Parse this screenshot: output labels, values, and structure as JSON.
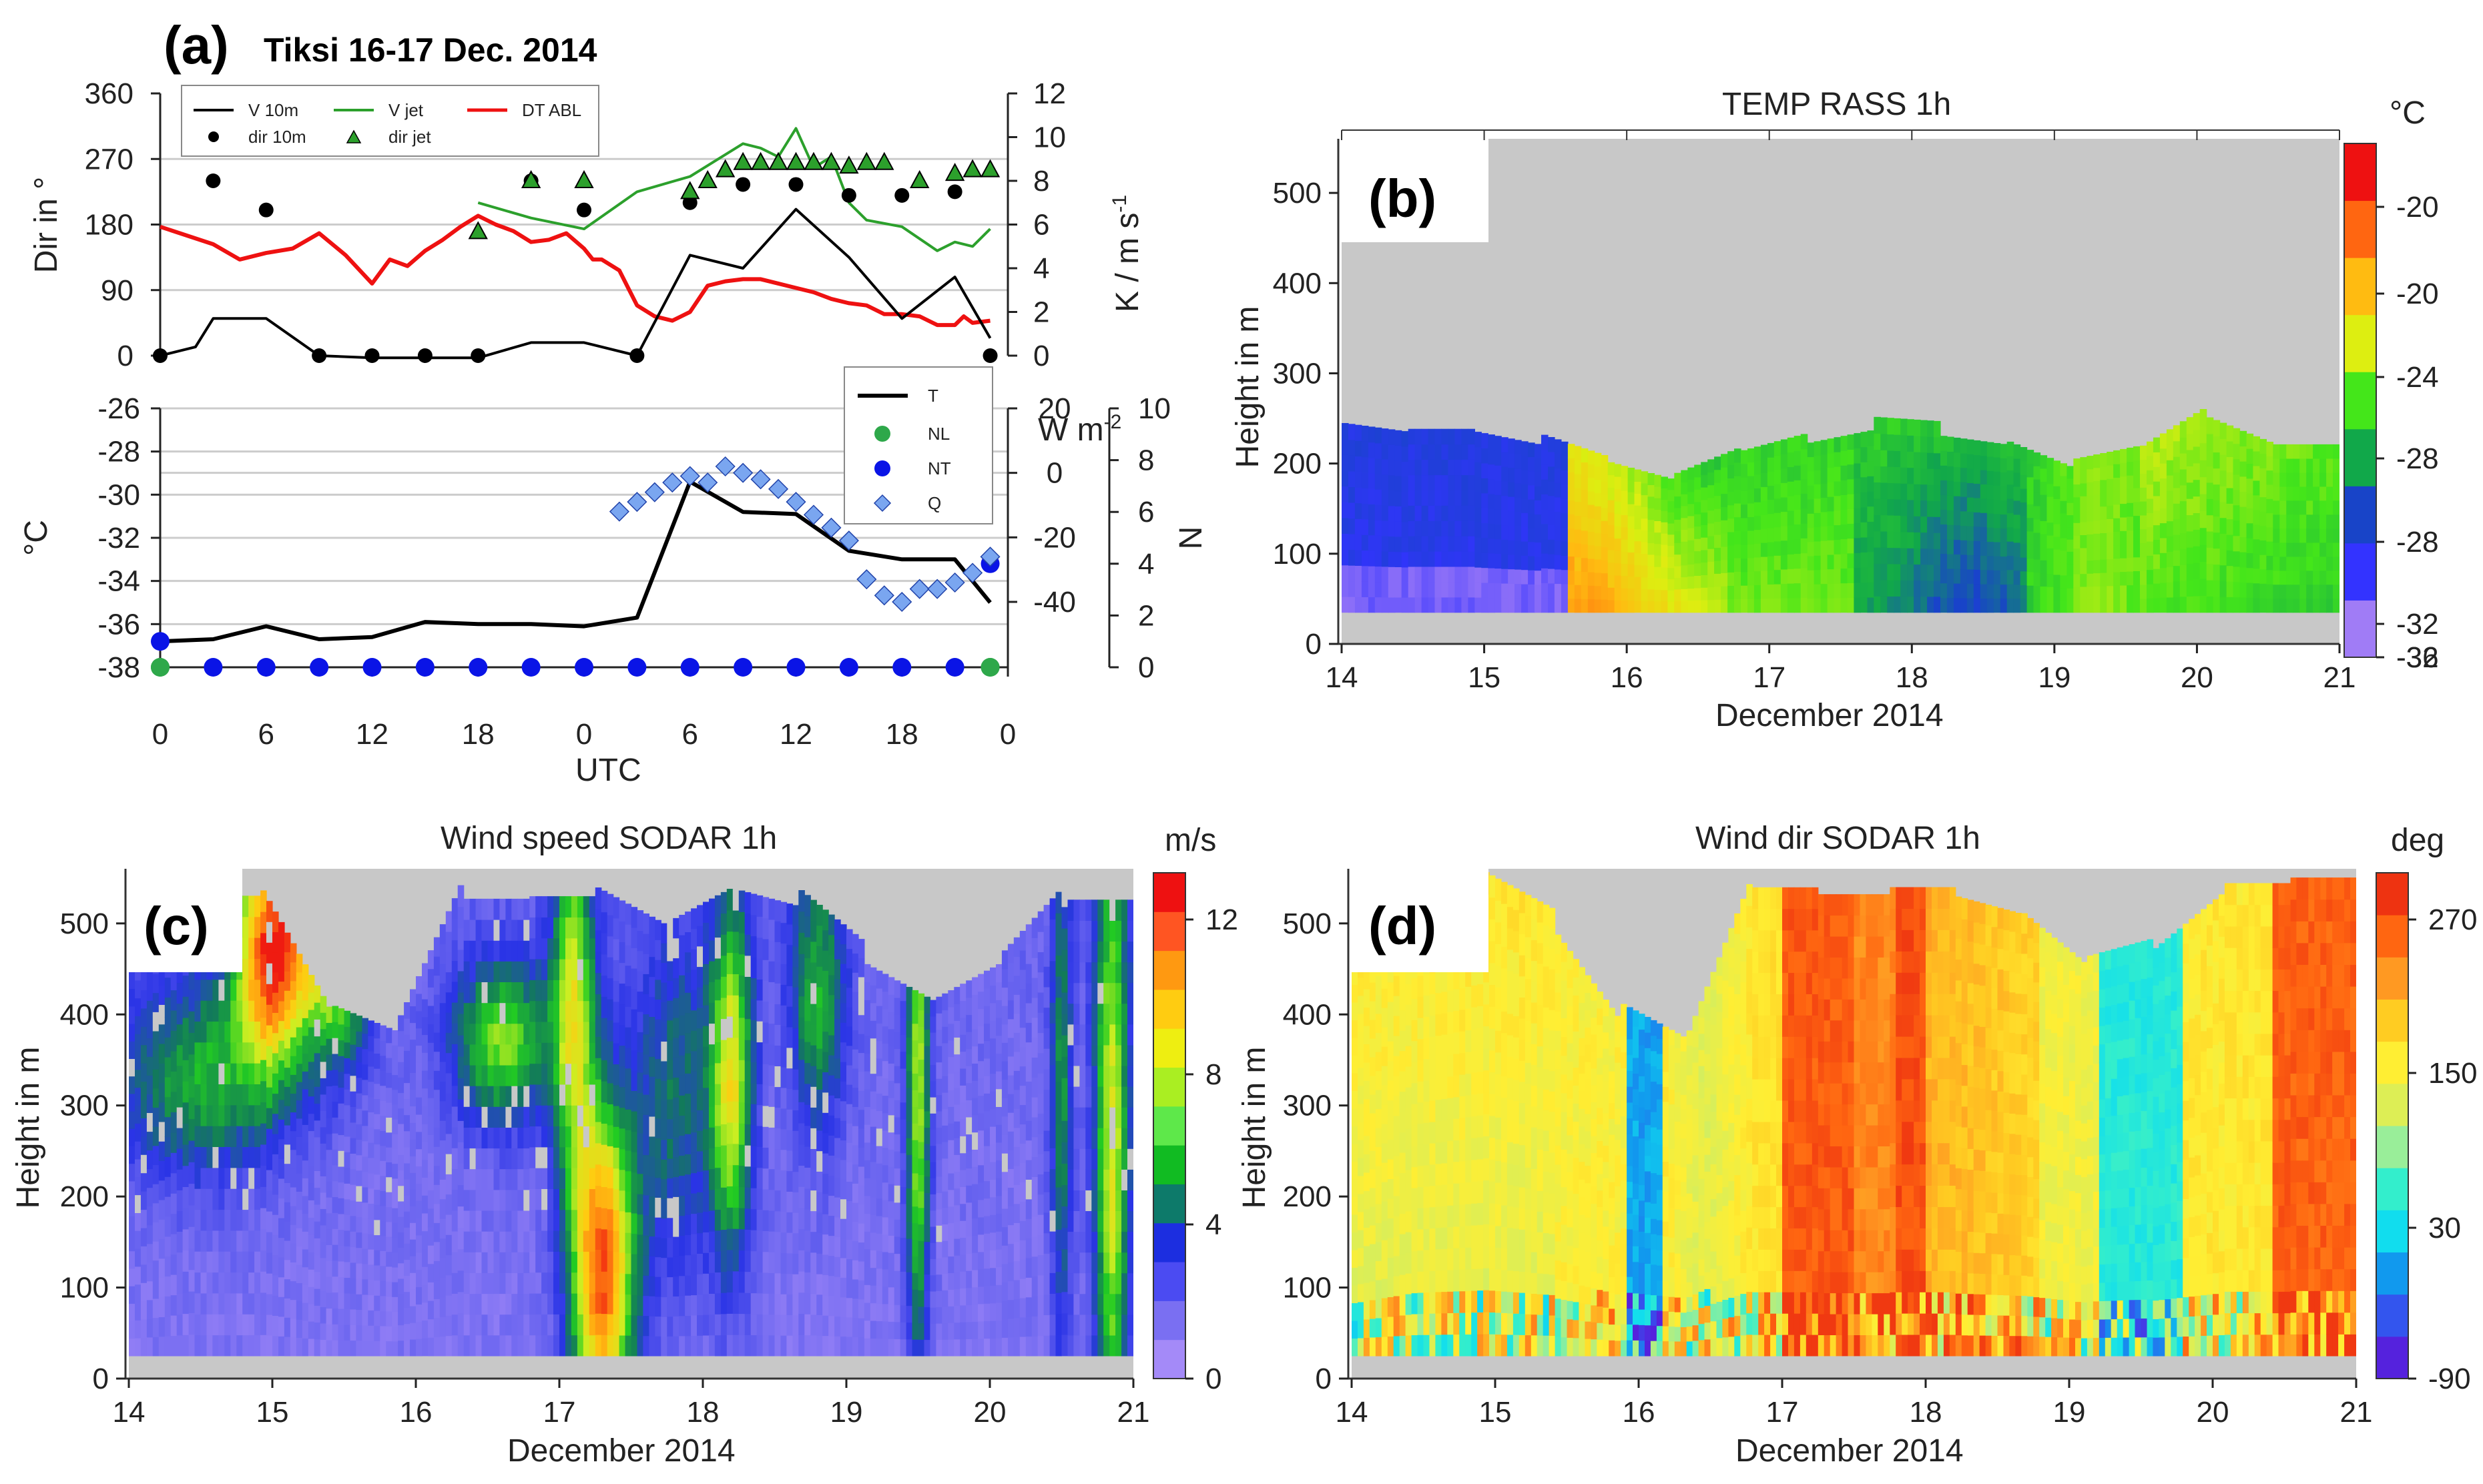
{
  "chart_data": [
    {
      "id": "a-top",
      "type": "line",
      "panel_label": "(a)",
      "title": "Tiksi 16-17 Dec. 2014",
      "ylabel_left": "Dir in °",
      "ylabel_right": "K / m s",
      "ylabel_right_sup": "-1",
      "ylim_left": [
        0,
        360
      ],
      "yticks_left": [
        "0",
        "90",
        "180",
        "270",
        "360"
      ],
      "ylim_right": [
        0,
        12
      ],
      "yticks_right": [
        "0",
        "2",
        "4",
        "6",
        "8",
        "10",
        "12"
      ],
      "xlim": [
        0,
        48
      ],
      "legend": [
        "V 10m",
        "V jet",
        "DT ABL",
        "dir 10m",
        "dir jet"
      ],
      "colors": {
        "v10m": "#000000",
        "vjet": "#2ca02c",
        "dtabl": "#ee1111",
        "dir10m": "#000000",
        "dirjet": "#2ca02c"
      },
      "series": [
        {
          "name": "V 10m",
          "axis": "right",
          "x": [
            0,
            2,
            3,
            6,
            9,
            12,
            15,
            18,
            21,
            24,
            27,
            30,
            33,
            36,
            39,
            42,
            45,
            47
          ],
          "y": [
            0,
            0.4,
            1.7,
            1.7,
            0,
            -0.1,
            -0.1,
            -0.1,
            0.6,
            0.6,
            0,
            4.6,
            4,
            6.7,
            4.5,
            1.7,
            3.6,
            0.8
          ]
        },
        {
          "name": "V jet",
          "axis": "right",
          "x": [
            18,
            21,
            24,
            27,
            30,
            32,
            33,
            34,
            35,
            36,
            37,
            38,
            39,
            40,
            42,
            44,
            45,
            46,
            47
          ],
          "y": [
            7,
            6.3,
            5.8,
            7.5,
            8.2,
            9.2,
            9.7,
            9.5,
            9.1,
            10.4,
            8.6,
            9.1,
            7,
            6.2,
            5.9,
            4.8,
            5.2,
            5.0,
            5.8
          ]
        },
        {
          "name": "DT ABL",
          "axis": "right",
          "x": [
            0,
            3,
            4.5,
            6,
            7.5,
            9,
            10.5,
            12,
            13,
            14,
            15,
            16,
            17,
            18,
            19,
            20,
            21,
            22,
            23,
            24,
            24.5,
            25,
            26,
            26.5,
            27,
            28,
            29,
            30,
            31,
            32,
            33,
            34,
            35,
            36,
            37,
            38,
            39,
            40,
            41,
            42,
            43,
            44,
            45,
            45.5,
            46,
            47
          ],
          "y": [
            5.9,
            5.1,
            4.4,
            4.7,
            4.9,
            5.6,
            4.6,
            3.3,
            4.4,
            4.1,
            4.8,
            5.3,
            5.9,
            6.4,
            6.0,
            5.7,
            5.2,
            5.3,
            5.6,
            4.9,
            4.4,
            4.4,
            3.9,
            3.1,
            2.3,
            1.8,
            1.6,
            2.0,
            3.2,
            3.4,
            3.5,
            3.5,
            3.3,
            3.1,
            2.9,
            2.6,
            2.4,
            2.3,
            1.9,
            1.9,
            1.8,
            1.4,
            1.4,
            1.8,
            1.5,
            1.6
          ]
        },
        {
          "name": "dir 10m",
          "axis": "left",
          "x": [
            0,
            3,
            6,
            9,
            12,
            15,
            18,
            21,
            24,
            27,
            30,
            33,
            36,
            39,
            42,
            45,
            47
          ],
          "y": [
            0,
            240,
            200,
            0,
            0,
            0,
            0,
            240,
            200,
            0,
            210,
            235,
            235,
            220,
            220,
            225,
            0
          ]
        },
        {
          "name": "dir jet",
          "axis": "left",
          "x": [
            18,
            21,
            24,
            30,
            31,
            32,
            33,
            34,
            35,
            36,
            37,
            38,
            39,
            40,
            41,
            43,
            45,
            46,
            47
          ],
          "y": [
            170,
            240,
            240,
            225,
            240,
            255,
            265,
            265,
            265,
            265,
            265,
            265,
            260,
            265,
            265,
            240,
            250,
            255,
            255
          ]
        }
      ]
    },
    {
      "id": "a-bottom",
      "type": "line",
      "ylabel_left": "°C",
      "ylabel_right": "W m",
      "ylabel_right_sup": "-2",
      "ylabel_n": "N",
      "xlabel": "UTC",
      "ylim_left": [
        -38,
        -26
      ],
      "yticks_left": [
        "-38",
        "-36",
        "-34",
        "-32",
        "-30",
        "-28",
        "-26"
      ],
      "yticks_wm2": [
        "-40",
        "-20",
        "0",
        "20"
      ],
      "yticks_n": [
        "0",
        "2",
        "4",
        "6",
        "8",
        "10"
      ],
      "xticks": [
        "0",
        "6",
        "12",
        "18",
        "0",
        "6",
        "12",
        "18",
        "0"
      ],
      "legend": [
        "T",
        "NL",
        "NT",
        "Q"
      ],
      "colors": {
        "T": "#000000",
        "NL": "#2ea84a",
        "NT": "#0a14e6",
        "Q": "#7aa6f0"
      },
      "series": [
        {
          "name": "T",
          "axis": "left",
          "x": [
            0,
            3,
            6,
            9,
            12,
            15,
            18,
            21,
            24,
            27,
            30,
            33,
            36,
            39,
            42,
            45,
            47
          ],
          "y": [
            -36.8,
            -36.7,
            -36.1,
            -36.7,
            -36.6,
            -35.9,
            -36.0,
            -36.0,
            -36.1,
            -35.7,
            -29.4,
            -30.8,
            -30.9,
            -32.6,
            -33.0,
            -33.0,
            -35.0
          ]
        },
        {
          "name": "NL",
          "axis": "n",
          "x": [
            0,
            47
          ],
          "y": [
            0,
            0
          ]
        },
        {
          "name": "NT",
          "axis": "n",
          "x": [
            0,
            3,
            6,
            9,
            12,
            15,
            18,
            21,
            24,
            27,
            30,
            33,
            36,
            39,
            42,
            45,
            47
          ],
          "y": [
            1,
            0,
            0,
            0,
            0,
            0,
            0,
            0,
            0,
            0,
            0,
            0,
            0,
            0,
            0,
            0,
            4
          ]
        },
        {
          "name": "Q",
          "axis": "wm2",
          "x": [
            26,
            27,
            28,
            29,
            30,
            31,
            32,
            33,
            34,
            35,
            36,
            37,
            38,
            39,
            40,
            41,
            42,
            43,
            44,
            45,
            46,
            47
          ],
          "y": [
            -12,
            -9,
            -6,
            -3,
            -1,
            -3,
            2,
            0,
            -2,
            -5,
            -9,
            -13,
            -17,
            -21,
            -33,
            -38,
            -40,
            -36,
            -36,
            -34,
            -31,
            -26
          ]
        }
      ]
    },
    {
      "id": "b",
      "type": "heatmap",
      "panel_label": "(b)",
      "title": "TEMP RASS 1h",
      "ylabel": "Height in m",
      "xlabel": "December 2014",
      "xticks": [
        "14",
        "15",
        "16",
        "17",
        "18",
        "19",
        "20",
        "21"
      ],
      "yticks": [
        "0",
        "100",
        "200",
        "300",
        "400",
        "500"
      ],
      "colorbar_unit": "°C",
      "colorbar_ticks": [
        "-20",
        "-20",
        "-24",
        "-28",
        "-28",
        "-32",
        "-32",
        "-36"
      ],
      "colors": [
        "#a07cf6",
        "#3333ff",
        "#1844c8",
        "#11a84a",
        "#44e61a",
        "#ddee11",
        "#ffbb11",
        "#ff6611",
        "#ee1111"
      ]
    },
    {
      "id": "c",
      "type": "heatmap",
      "panel_label": "(c)",
      "title": "Wind speed SODAR 1h",
      "ylabel": "Height in m",
      "xlabel": "December 2014",
      "xticks": [
        "14",
        "15",
        "16",
        "17",
        "18",
        "19",
        "20",
        "21"
      ],
      "yticks": [
        "0",
        "100",
        "200",
        "300",
        "400",
        "500"
      ],
      "colorbar_unit": "m/s",
      "colorbar_ticks": [
        "0",
        "4",
        "8",
        "12"
      ],
      "colors": [
        "#a48af8",
        "#7a6ff2",
        "#4b4bf2",
        "#1c2ee0",
        "#0d7a6a",
        "#11bb22",
        "#5ee84a",
        "#aaee22",
        "#eeee11",
        "#ffcc11",
        "#ff9911",
        "#ff5522",
        "#ee1111"
      ]
    },
    {
      "id": "d",
      "type": "heatmap",
      "panel_label": "(d)",
      "title": "Wind dir SODAR 1h",
      "ylabel": "Height in m",
      "xlabel": "December 2014",
      "xticks": [
        "14",
        "15",
        "16",
        "17",
        "18",
        "19",
        "20",
        "21"
      ],
      "yticks": [
        "0",
        "100",
        "200",
        "300",
        "400",
        "500"
      ],
      "colorbar_unit": "deg",
      "colorbar_ticks": [
        "-90",
        "30",
        "150",
        "270"
      ],
      "colors": [
        "#5522dd",
        "#3355ee",
        "#1199ee",
        "#11ddee",
        "#33eecc",
        "#99ee99",
        "#ddee55",
        "#ffee33",
        "#ffcc22",
        "#ff9922",
        "#ff6611",
        "#ee3311"
      ]
    }
  ]
}
